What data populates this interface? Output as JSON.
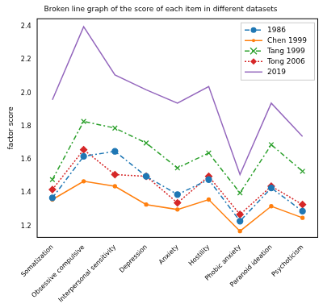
{
  "chart_data": {
    "type": "line",
    "title": "Broken line graph of the score of each item in different datasets",
    "y_label": "factor score",
    "categories": [
      "Somatization",
      "Obsessive compulsive",
      "Interpersonal sensitivity",
      "Depression",
      "Anxiety",
      "Hostility",
      "Phobic anxiety",
      "Paranoid ideation",
      "Psychoticism"
    ],
    "series": [
      {
        "name": "1986",
        "color": "#1f77b4",
        "marker": "circle",
        "line_style": "dashdot",
        "values": [
          1.37,
          1.62,
          1.65,
          1.5,
          1.39,
          1.48,
          1.23,
          1.43,
          1.29
        ]
      },
      {
        "name": "Chen 1999",
        "color": "#ff7f0e",
        "marker": "point",
        "line_style": "solid",
        "values": [
          1.36,
          1.47,
          1.44,
          1.33,
          1.3,
          1.36,
          1.17,
          1.32,
          1.25
        ]
      },
      {
        "name": "Tang 1999",
        "color": "#2ca02c",
        "marker": "x",
        "line_style": "dashdot",
        "values": [
          1.48,
          1.83,
          1.79,
          1.7,
          1.55,
          1.64,
          1.4,
          1.69,
          1.53
        ]
      },
      {
        "name": "Tong 2006",
        "color": "#d62728",
        "marker": "diamond",
        "line_style": "dotted",
        "values": [
          1.42,
          1.66,
          1.51,
          1.5,
          1.34,
          1.5,
          1.27,
          1.44,
          1.33
        ]
      },
      {
        "name": "2019",
        "color": "#9467bd",
        "marker": "none",
        "line_style": "solid",
        "values": [
          1.96,
          2.4,
          2.11,
          2.02,
          1.94,
          2.04,
          1.51,
          1.94,
          1.74
        ]
      }
    ],
    "ylim": [
      1.13,
      2.45
    ],
    "yticks": [
      1.2,
      1.4,
      1.6,
      1.8,
      {
        "value": 2.0,
        "label": "2.0"
      },
      2.2,
      2.4
    ],
    "grid": false,
    "legend": "upper right"
  }
}
